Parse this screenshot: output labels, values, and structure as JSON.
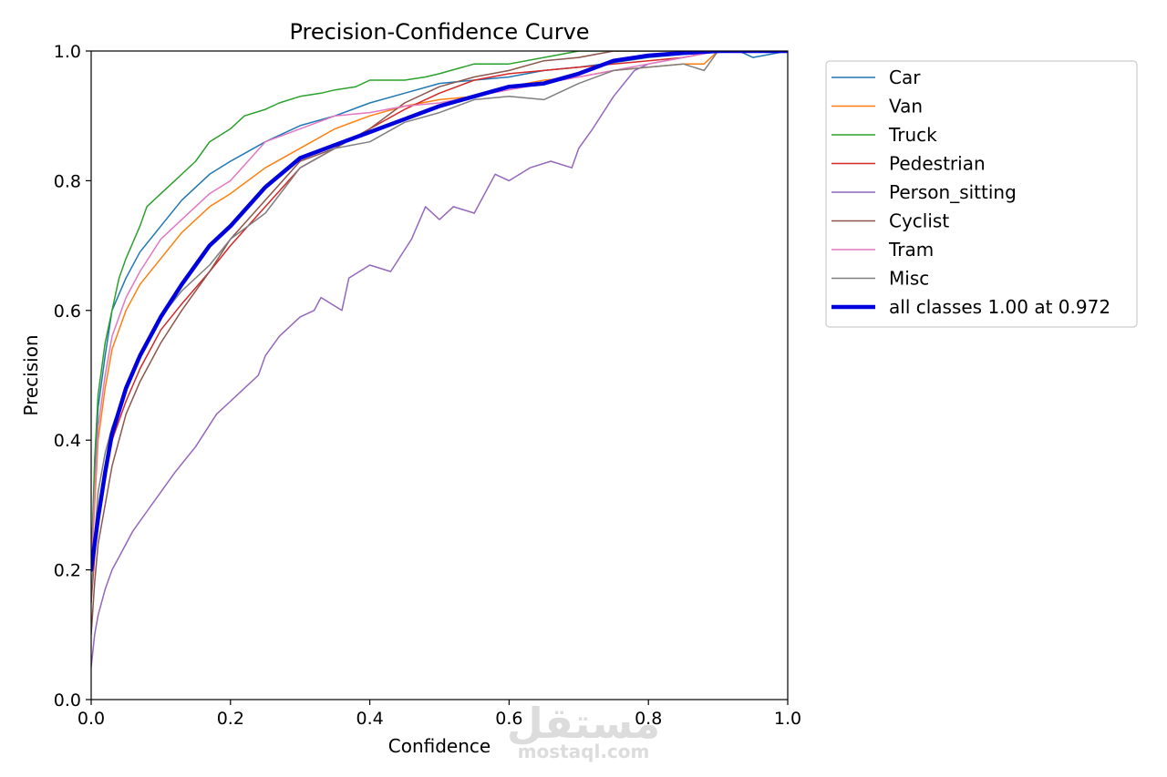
{
  "chart_data": {
    "type": "line",
    "title": "Precision-Confidence Curve",
    "xlabel": "Confidence",
    "ylabel": "Precision",
    "xlim": [
      0,
      1
    ],
    "ylim": [
      0,
      1
    ],
    "xticks": [
      "0.0",
      "0.2",
      "0.4",
      "0.6",
      "0.8",
      "1.0"
    ],
    "yticks": [
      "0.0",
      "0.2",
      "0.4",
      "0.6",
      "0.8",
      "1.0"
    ],
    "grid": false,
    "legend_position": "outside-right-top",
    "series": [
      {
        "name": "Car",
        "color": "#1f77b4",
        "width": 1.5,
        "x": [
          0,
          0.005,
          0.01,
          0.02,
          0.03,
          0.05,
          0.07,
          0.1,
          0.13,
          0.17,
          0.2,
          0.25,
          0.3,
          0.35,
          0.4,
          0.45,
          0.5,
          0.55,
          0.6,
          0.65,
          0.7,
          0.75,
          0.8,
          0.85,
          0.9,
          0.93,
          0.94,
          0.95,
          1.0
        ],
        "y": [
          0.2,
          0.35,
          0.45,
          0.53,
          0.6,
          0.65,
          0.69,
          0.73,
          0.77,
          0.81,
          0.83,
          0.86,
          0.885,
          0.9,
          0.92,
          0.935,
          0.95,
          0.955,
          0.96,
          0.97,
          0.975,
          0.982,
          0.99,
          0.995,
          0.998,
          1.0,
          0.995,
          0.99,
          1.0
        ]
      },
      {
        "name": "Van",
        "color": "#ff7f0e",
        "width": 1.5,
        "x": [
          0,
          0.005,
          0.01,
          0.02,
          0.03,
          0.05,
          0.07,
          0.1,
          0.13,
          0.17,
          0.2,
          0.25,
          0.3,
          0.35,
          0.4,
          0.45,
          0.5,
          0.55,
          0.6,
          0.65,
          0.7,
          0.75,
          0.8,
          0.85,
          0.88,
          0.9,
          1.0
        ],
        "y": [
          0.2,
          0.3,
          0.4,
          0.48,
          0.54,
          0.6,
          0.64,
          0.68,
          0.72,
          0.76,
          0.78,
          0.82,
          0.85,
          0.88,
          0.9,
          0.915,
          0.925,
          0.93,
          0.945,
          0.955,
          0.96,
          0.97,
          0.975,
          0.98,
          0.98,
          1.0,
          1.0
        ]
      },
      {
        "name": "Truck",
        "color": "#2ca02c",
        "width": 1.5,
        "x": [
          0,
          0.005,
          0.01,
          0.02,
          0.03,
          0.04,
          0.05,
          0.07,
          0.08,
          0.1,
          0.12,
          0.15,
          0.17,
          0.2,
          0.22,
          0.25,
          0.27,
          0.3,
          0.33,
          0.35,
          0.38,
          0.4,
          0.45,
          0.48,
          0.5,
          0.55,
          0.6,
          0.65,
          0.7,
          0.75,
          0.8,
          0.9,
          1.0
        ],
        "y": [
          0.2,
          0.37,
          0.47,
          0.55,
          0.6,
          0.65,
          0.68,
          0.73,
          0.76,
          0.78,
          0.8,
          0.83,
          0.86,
          0.88,
          0.9,
          0.91,
          0.92,
          0.93,
          0.935,
          0.94,
          0.945,
          0.955,
          0.955,
          0.96,
          0.965,
          0.98,
          0.98,
          0.99,
          1.0,
          1.0,
          1.0,
          1.0,
          1.0
        ]
      },
      {
        "name": "Pedestrian",
        "color": "#d62728",
        "width": 1.5,
        "x": [
          0,
          0.005,
          0.01,
          0.02,
          0.03,
          0.05,
          0.07,
          0.1,
          0.13,
          0.17,
          0.2,
          0.25,
          0.3,
          0.35,
          0.4,
          0.45,
          0.5,
          0.55,
          0.6,
          0.65,
          0.7,
          0.75,
          0.8,
          0.85,
          0.9,
          1.0
        ],
        "y": [
          0.15,
          0.22,
          0.28,
          0.35,
          0.4,
          0.46,
          0.51,
          0.57,
          0.61,
          0.66,
          0.7,
          0.76,
          0.82,
          0.85,
          0.88,
          0.91,
          0.935,
          0.955,
          0.965,
          0.97,
          0.975,
          0.98,
          0.985,
          0.99,
          1.0,
          1.0
        ]
      },
      {
        "name": "Person_sitting",
        "color": "#9467bd",
        "width": 1.5,
        "x": [
          0,
          0.005,
          0.01,
          0.02,
          0.03,
          0.04,
          0.05,
          0.06,
          0.08,
          0.1,
          0.12,
          0.15,
          0.18,
          0.2,
          0.22,
          0.24,
          0.25,
          0.27,
          0.3,
          0.32,
          0.33,
          0.36,
          0.37,
          0.4,
          0.43,
          0.46,
          0.48,
          0.5,
          0.52,
          0.55,
          0.58,
          0.6,
          0.63,
          0.66,
          0.69,
          0.7,
          0.72,
          0.75,
          0.78,
          0.8,
          0.85,
          0.9,
          1.0
        ],
        "y": [
          0.05,
          0.1,
          0.13,
          0.17,
          0.2,
          0.22,
          0.24,
          0.26,
          0.29,
          0.32,
          0.35,
          0.39,
          0.44,
          0.46,
          0.48,
          0.5,
          0.53,
          0.56,
          0.59,
          0.6,
          0.62,
          0.6,
          0.65,
          0.67,
          0.66,
          0.71,
          0.76,
          0.74,
          0.76,
          0.75,
          0.81,
          0.8,
          0.82,
          0.83,
          0.82,
          0.85,
          0.88,
          0.93,
          0.97,
          0.98,
          0.99,
          1.0,
          1.0
        ]
      },
      {
        "name": "Cyclist",
        "color": "#8c564b",
        "width": 1.5,
        "x": [
          0,
          0.005,
          0.01,
          0.02,
          0.03,
          0.05,
          0.07,
          0.1,
          0.13,
          0.17,
          0.2,
          0.25,
          0.3,
          0.35,
          0.4,
          0.45,
          0.5,
          0.55,
          0.6,
          0.65,
          0.7,
          0.75,
          0.8,
          0.9,
          1.0
        ],
        "y": [
          0.1,
          0.18,
          0.24,
          0.3,
          0.36,
          0.44,
          0.49,
          0.55,
          0.6,
          0.66,
          0.71,
          0.77,
          0.83,
          0.85,
          0.88,
          0.92,
          0.945,
          0.96,
          0.97,
          0.985,
          0.99,
          1.0,
          1.0,
          1.0,
          1.0
        ]
      },
      {
        "name": "Tram",
        "color": "#e377c2",
        "width": 1.5,
        "x": [
          0,
          0.005,
          0.01,
          0.02,
          0.03,
          0.05,
          0.07,
          0.1,
          0.13,
          0.17,
          0.2,
          0.25,
          0.3,
          0.35,
          0.4,
          0.45,
          0.5,
          0.55,
          0.6,
          0.65,
          0.7,
          0.75,
          0.8,
          0.85,
          0.9,
          1.0
        ],
        "y": [
          0.2,
          0.32,
          0.42,
          0.5,
          0.56,
          0.62,
          0.66,
          0.71,
          0.74,
          0.78,
          0.8,
          0.86,
          0.88,
          0.9,
          0.905,
          0.915,
          0.92,
          0.93,
          0.94,
          0.95,
          0.96,
          0.97,
          0.98,
          0.99,
          1.0,
          1.0
        ]
      },
      {
        "name": "Misc",
        "color": "#7f7f7f",
        "width": 1.5,
        "x": [
          0,
          0.005,
          0.01,
          0.02,
          0.03,
          0.05,
          0.07,
          0.1,
          0.13,
          0.17,
          0.2,
          0.25,
          0.3,
          0.35,
          0.4,
          0.45,
          0.5,
          0.55,
          0.6,
          0.65,
          0.7,
          0.75,
          0.8,
          0.85,
          0.88,
          0.9,
          1.0
        ],
        "y": [
          0.15,
          0.25,
          0.32,
          0.38,
          0.42,
          0.48,
          0.53,
          0.59,
          0.63,
          0.67,
          0.71,
          0.75,
          0.82,
          0.85,
          0.86,
          0.89,
          0.905,
          0.925,
          0.93,
          0.925,
          0.95,
          0.97,
          0.975,
          0.98,
          0.97,
          1.0,
          1.0
        ]
      },
      {
        "name": "all classes 1.00 at 0.972",
        "color": "#0000dd",
        "width": 4.5,
        "x": [
          0,
          0.005,
          0.01,
          0.02,
          0.03,
          0.05,
          0.07,
          0.1,
          0.13,
          0.15,
          0.17,
          0.2,
          0.25,
          0.3,
          0.35,
          0.4,
          0.45,
          0.5,
          0.55,
          0.6,
          0.65,
          0.7,
          0.75,
          0.8,
          0.85,
          0.9,
          0.95,
          1.0
        ],
        "y": [
          0.2,
          0.24,
          0.28,
          0.35,
          0.41,
          0.48,
          0.53,
          0.59,
          0.64,
          0.67,
          0.7,
          0.73,
          0.79,
          0.835,
          0.855,
          0.875,
          0.895,
          0.915,
          0.93,
          0.945,
          0.95,
          0.965,
          0.985,
          0.993,
          0.997,
          1.0,
          1.0,
          1.0
        ]
      }
    ]
  },
  "watermark": {
    "arabic": "مستقل",
    "latin": "mostaql.com"
  }
}
